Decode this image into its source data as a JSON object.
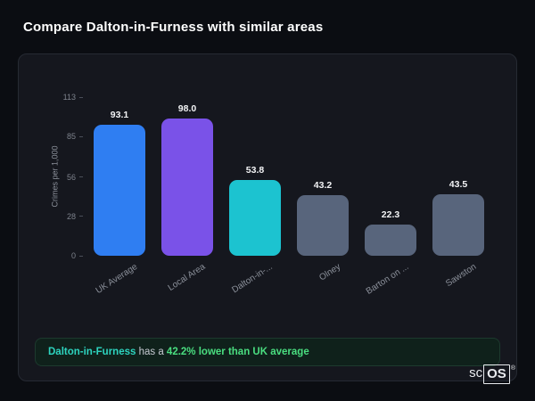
{
  "page": {
    "title": "Compare Dalton-in-Furness with similar areas"
  },
  "colors": {
    "accent_teal": "#2dd4bf",
    "accent_green": "#4ade80",
    "note_bg": "#0f211b",
    "bar_blue": "#2f7ef2",
    "bar_purple": "#7a52e8",
    "bar_teal": "#1cc3d0",
    "bar_gray": "#58657c"
  },
  "chart_data": {
    "type": "bar",
    "categories": [
      "UK Average",
      "Local Area",
      "Dalton-in-...",
      "Olney",
      "Barton on ...",
      "Sawston"
    ],
    "values": [
      93.1,
      98.0,
      53.8,
      43.2,
      22.3,
      43.5
    ],
    "bar_colors": [
      "#2f7ef2",
      "#7a52e8",
      "#1cc3d0",
      "#58657c",
      "#58657c",
      "#58657c"
    ],
    "title": "",
    "xlabel": "",
    "ylabel": "Crimes per 1,000",
    "ylim": [
      0,
      113
    ],
    "yticks": [
      113,
      85,
      56,
      28,
      0
    ],
    "grid": false,
    "legend": false
  },
  "footer_note": {
    "area_name": "Dalton-in-Furness",
    "middle_text": " has a ",
    "highlight_text": "42.2% lower than UK average"
  },
  "logo": {
    "prefix": "sc",
    "boxed": "OS",
    "registered": "®"
  }
}
